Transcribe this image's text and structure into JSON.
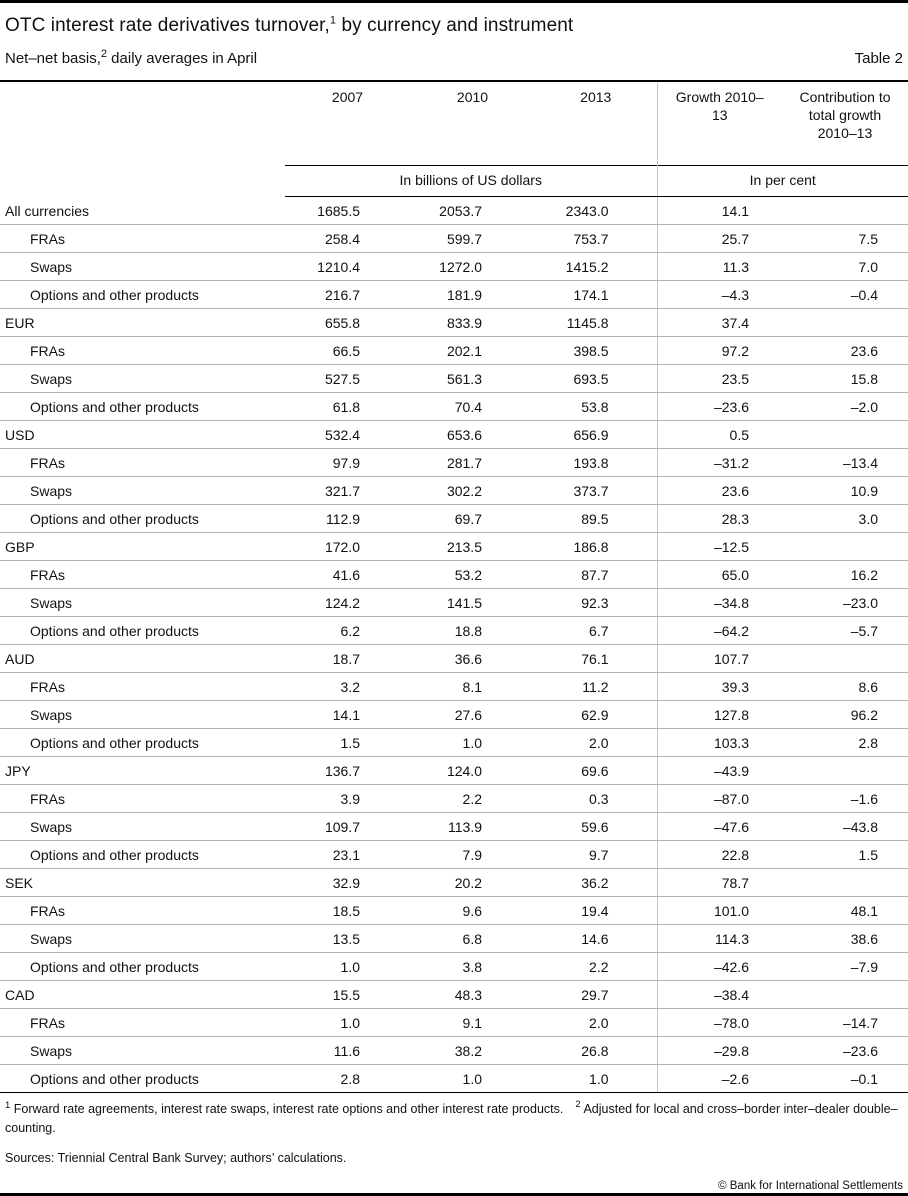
{
  "header": {
    "title_part1": "OTC interest rate derivatives turnover,",
    "title_sup": "1",
    "title_part2": " by currency and instrument",
    "subtitle_part1": "Net–net basis,",
    "subtitle_sup": "2",
    "subtitle_part2": " daily averages in April",
    "table_label": "Table 2"
  },
  "chart_data": {
    "type": "table",
    "title": "OTC interest rate derivatives turnover, by currency and instrument",
    "columns": [
      "2007",
      "2010",
      "2013",
      "Growth 2010–13",
      "Contribution to total growth 2010–13"
    ],
    "column_groups": [
      {
        "label": "In billions of US dollars",
        "span": 3
      },
      {
        "label": "In per cent",
        "span": 2
      }
    ],
    "rows": [
      {
        "label": "All currencies",
        "indent": false,
        "values": [
          "1685.5",
          "2053.7",
          "2343.0",
          "14.1",
          ""
        ]
      },
      {
        "label": "FRAs",
        "indent": true,
        "values": [
          "258.4",
          "599.7",
          "753.7",
          "25.7",
          "7.5"
        ]
      },
      {
        "label": "Swaps",
        "indent": true,
        "values": [
          "1210.4",
          "1272.0",
          "1415.2",
          "11.3",
          "7.0"
        ]
      },
      {
        "label": "Options and other products",
        "indent": true,
        "values": [
          "216.7",
          "181.9",
          "174.1",
          "–4.3",
          "–0.4"
        ]
      },
      {
        "label": "EUR",
        "indent": false,
        "values": [
          "655.8",
          "833.9",
          "1145.8",
          "37.4",
          ""
        ]
      },
      {
        "label": "FRAs",
        "indent": true,
        "values": [
          "66.5",
          "202.1",
          "398.5",
          "97.2",
          "23.6"
        ]
      },
      {
        "label": "Swaps",
        "indent": true,
        "values": [
          "527.5",
          "561.3",
          "693.5",
          "23.5",
          "15.8"
        ]
      },
      {
        "label": "Options and other products",
        "indent": true,
        "values": [
          "61.8",
          "70.4",
          "53.8",
          "–23.6",
          "–2.0"
        ]
      },
      {
        "label": "USD",
        "indent": false,
        "values": [
          "532.4",
          "653.6",
          "656.9",
          "0.5",
          ""
        ]
      },
      {
        "label": "FRAs",
        "indent": true,
        "values": [
          "97.9",
          "281.7",
          "193.8",
          "–31.2",
          "–13.4"
        ]
      },
      {
        "label": "Swaps",
        "indent": true,
        "values": [
          "321.7",
          "302.2",
          "373.7",
          "23.6",
          "10.9"
        ]
      },
      {
        "label": "Options and other products",
        "indent": true,
        "values": [
          "112.9",
          "69.7",
          "89.5",
          "28.3",
          "3.0"
        ]
      },
      {
        "label": "GBP",
        "indent": false,
        "values": [
          "172.0",
          "213.5",
          "186.8",
          "–12.5",
          ""
        ]
      },
      {
        "label": "FRAs",
        "indent": true,
        "values": [
          "41.6",
          "53.2",
          "87.7",
          "65.0",
          "16.2"
        ]
      },
      {
        "label": "Swaps",
        "indent": true,
        "values": [
          "124.2",
          "141.5",
          "92.3",
          "–34.8",
          "–23.0"
        ]
      },
      {
        "label": "Options and other products",
        "indent": true,
        "values": [
          "6.2",
          "18.8",
          "6.7",
          "–64.2",
          "–5.7"
        ]
      },
      {
        "label": "AUD",
        "indent": false,
        "values": [
          "18.7",
          "36.6",
          "76.1",
          "107.7",
          ""
        ]
      },
      {
        "label": "FRAs",
        "indent": true,
        "values": [
          "3.2",
          "8.1",
          "11.2",
          "39.3",
          "8.6"
        ]
      },
      {
        "label": "Swaps",
        "indent": true,
        "values": [
          "14.1",
          "27.6",
          "62.9",
          "127.8",
          "96.2"
        ]
      },
      {
        "label": "Options and other products",
        "indent": true,
        "values": [
          "1.5",
          "1.0",
          "2.0",
          "103.3",
          "2.8"
        ]
      },
      {
        "label": "JPY",
        "indent": false,
        "values": [
          "136.7",
          "124.0",
          "69.6",
          "–43.9",
          ""
        ]
      },
      {
        "label": "FRAs",
        "indent": true,
        "values": [
          "3.9",
          "2.2",
          "0.3",
          "–87.0",
          "–1.6"
        ]
      },
      {
        "label": "Swaps",
        "indent": true,
        "values": [
          "109.7",
          "113.9",
          "59.6",
          "–47.6",
          "–43.8"
        ]
      },
      {
        "label": "Options and other products",
        "indent": true,
        "values": [
          "23.1",
          "7.9",
          "9.7",
          "22.8",
          "1.5"
        ]
      },
      {
        "label": "SEK",
        "indent": false,
        "values": [
          "32.9",
          "20.2",
          "36.2",
          "78.7",
          ""
        ]
      },
      {
        "label": "FRAs",
        "indent": true,
        "values": [
          "18.5",
          "9.6",
          "19.4",
          "101.0",
          "48.1"
        ]
      },
      {
        "label": "Swaps",
        "indent": true,
        "values": [
          "13.5",
          "6.8",
          "14.6",
          "114.3",
          "38.6"
        ]
      },
      {
        "label": "Options and other products",
        "indent": true,
        "values": [
          "1.0",
          "3.8",
          "2.2",
          "–42.6",
          "–7.9"
        ]
      },
      {
        "label": "CAD",
        "indent": false,
        "values": [
          "15.5",
          "48.3",
          "29.7",
          "–38.4",
          ""
        ]
      },
      {
        "label": "FRAs",
        "indent": true,
        "values": [
          "1.0",
          "9.1",
          "2.0",
          "–78.0",
          "–14.7"
        ]
      },
      {
        "label": "Swaps",
        "indent": true,
        "values": [
          "11.6",
          "38.2",
          "26.8",
          "–29.8",
          "–23.6"
        ]
      },
      {
        "label": "Options and other products",
        "indent": true,
        "values": [
          "2.8",
          "1.0",
          "1.0",
          "–2.6",
          "–0.1"
        ]
      }
    ]
  },
  "footer": {
    "fn1_sup": "1",
    "fn1_text": "Forward rate agreements, interest rate swaps, interest rate options and other interest rate products.",
    "fn2_sup": "2",
    "fn2_text": "Adjusted for local and cross–border inter–dealer double–counting.",
    "sources": "Sources: Triennial Central Bank Survey; authors’ calculations.",
    "copyright": "© Bank for International Settlements"
  }
}
